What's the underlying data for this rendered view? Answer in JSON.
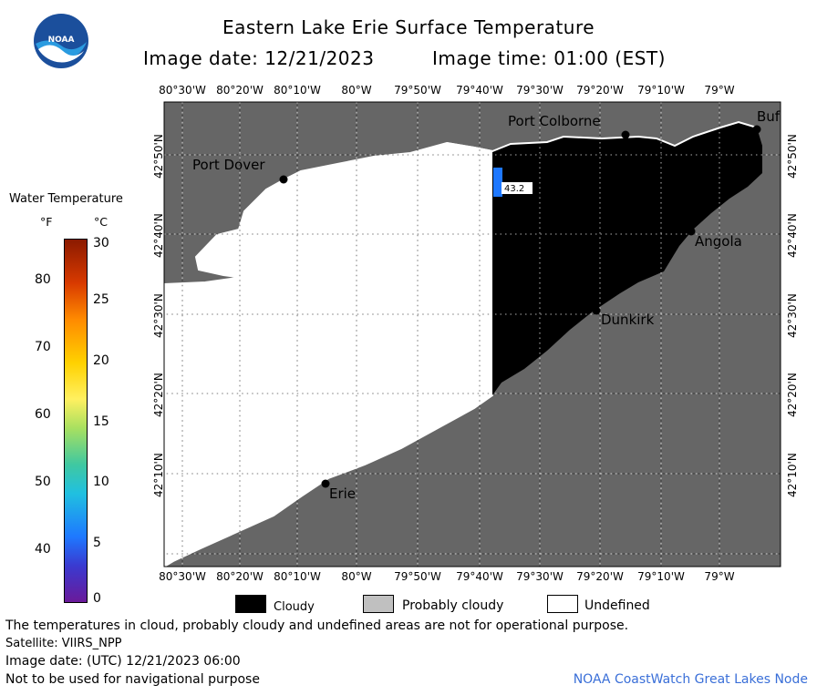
{
  "header": {
    "title": "Eastern Lake Erie Surface Temperature",
    "image_date": "Image date: 12/21/2023",
    "image_time": "Image time: 01:00 (EST)"
  },
  "logo": {
    "text": "NOAA"
  },
  "map": {
    "lon_labels": [
      "80°30'W",
      "80°20'W",
      "80°10'W",
      "80°W",
      "79°50'W",
      "79°40'W",
      "79°30'W",
      "79°20'W",
      "79°10'W",
      "79°W"
    ],
    "lat_labels": [
      "42°50'N",
      "42°40'N",
      "42°30'N",
      "42°20'N",
      "42°10'N"
    ],
    "places": {
      "port_dover": "Port Dover",
      "port_colborne": "Port Colborne",
      "buffalo": "Buf",
      "angola": "Angola",
      "dunkirk": "Dunkirk",
      "erie": "Erie"
    },
    "buoy_label": "43.2",
    "colors": {
      "land": "#666666",
      "cloud": "#000000",
      "undefined": "#ffffff",
      "buoy": "#1e78ff"
    }
  },
  "colorbar": {
    "title": "Water Temperature",
    "unit_f": "°F",
    "unit_c": "°C",
    "f_ticks": [
      "80",
      "70",
      "60",
      "50",
      "40"
    ],
    "c_ticks": [
      "30",
      "25",
      "20",
      "15",
      "10",
      "5",
      "0"
    ]
  },
  "legend": {
    "cloudy": "Cloudy",
    "probably_cloudy": "Probably cloudy",
    "undefined": "Undefined",
    "colors": {
      "cloudy": "#000000",
      "probably_cloudy": "#c0c0c0",
      "undefined": "#ffffff"
    }
  },
  "footer": {
    "disclaimer": "The temperatures in cloud, probably cloudy and undefined areas are not for operational purpose.",
    "satellite": "Satellite: VIIRS_NPP",
    "utc_date": "Image date: (UTC) 12/21/2023  06:00",
    "nav": "Not to be used for navigational purpose",
    "credit": "NOAA CoastWatch Great Lakes Node"
  }
}
